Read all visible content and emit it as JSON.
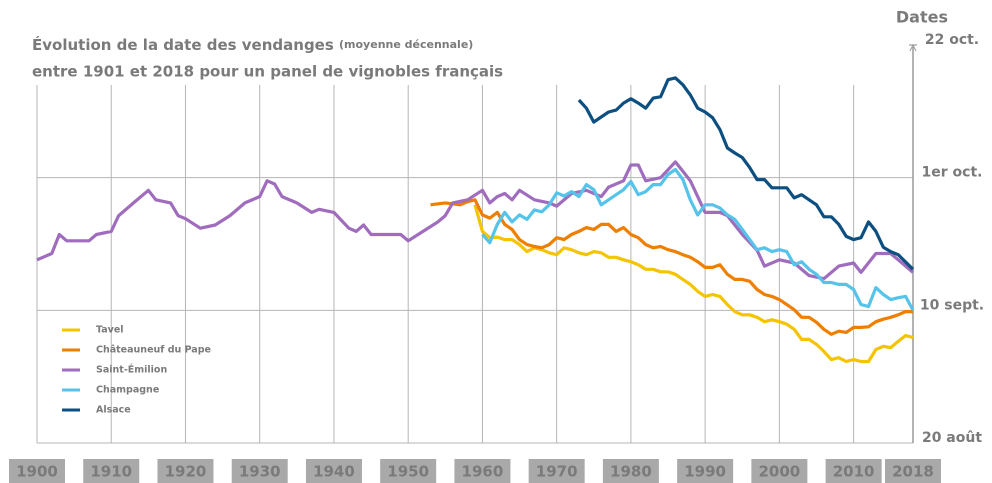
{
  "chart_data": {
    "type": "line",
    "title": "Évolution de la date des vendanges",
    "title_note": "(moyenne décennale)",
    "subtitle": "entre 1901 et 2018 pour un panel de vignobles français",
    "y_label": "Dates",
    "xlim": [
      1900,
      2018
    ],
    "xticks": [
      1900,
      1910,
      1920,
      1930,
      1940,
      1950,
      1960,
      1970,
      1980,
      1990,
      2000,
      2010,
      2018
    ],
    "ylim": [
      232,
      295
    ],
    "yticks": [
      {
        "value": 232,
        "label": "20 août"
      },
      {
        "value": 253,
        "label": "10 sept."
      },
      {
        "value": 274,
        "label": "1er oct."
      },
      {
        "value": 295,
        "label": "22 oct."
      }
    ],
    "grid": true,
    "legend": "lower left",
    "series": [
      {
        "name": "Tavel",
        "color": "#f5c400",
        "x": [
          1959,
          1960,
          1961,
          1962,
          1963,
          1964,
          1965,
          1966,
          1967,
          1968,
          1969,
          1970,
          1971,
          1972,
          1973,
          1974,
          1975,
          1976,
          1977,
          1978,
          1979,
          1980,
          1981,
          1982,
          1983,
          1984,
          1985,
          1986,
          1987,
          1988,
          1989,
          1990,
          1991,
          1992,
          1993,
          1994,
          1995,
          1996,
          1997,
          1998,
          1999,
          2000,
          2001,
          2002,
          2003,
          2004,
          2005,
          2006,
          2007,
          2008,
          2009,
          2010,
          2011,
          2012,
          2013,
          2014,
          2015,
          2016,
          2017,
          2018
        ],
        "values": [
          269.7,
          265.5,
          264.5,
          264.6,
          264.2,
          264.2,
          263.4,
          262.3,
          262.9,
          262.6,
          262.1,
          261.8,
          262.9,
          262.6,
          262.1,
          261.8,
          262.3,
          262.1,
          261.4,
          261.4,
          261,
          260.7,
          260.2,
          259.5,
          259.5,
          259.1,
          259.1,
          258.7,
          257.9,
          257.1,
          256,
          255.2,
          255.5,
          255.2,
          253.9,
          252.8,
          252.3,
          252.3,
          251.9,
          251.2,
          251.5,
          251.2,
          250.8,
          250,
          248.4,
          248.4,
          247.6,
          246.5,
          245.2,
          245.5,
          244.9,
          245.2,
          244.9,
          244.9,
          246.8,
          247.3,
          247.1,
          248.1,
          249,
          248.7
        ]
      },
      {
        "name": "Châteauneuf du Pape",
        "color": "#ee7f00",
        "x": [
          1953,
          1955,
          1957,
          1958,
          1959,
          1960,
          1961,
          1962,
          1963,
          1964,
          1965,
          1966,
          1967,
          1968,
          1969,
          1970,
          1971,
          1972,
          1973,
          1974,
          1975,
          1976,
          1977,
          1978,
          1979,
          1980,
          1981,
          1982,
          1983,
          1984,
          1985,
          1986,
          1987,
          1988,
          1989,
          1990,
          1991,
          1992,
          1993,
          1994,
          1995,
          1996,
          1997,
          1998,
          1999,
          2000,
          2001,
          2002,
          2003,
          2004,
          2005,
          2006,
          2007,
          2008,
          2009,
          2010,
          2011,
          2012,
          2013,
          2014,
          2015,
          2016,
          2017,
          2018
        ],
        "values": [
          269.7,
          270,
          269.7,
          270.2,
          270.5,
          268.1,
          267.6,
          268.5,
          266.6,
          265.8,
          264.2,
          263.4,
          263.1,
          262.9,
          263.4,
          264.5,
          264.2,
          265,
          265.5,
          266.1,
          265.8,
          266.6,
          266.6,
          265.5,
          266.1,
          265,
          264.5,
          263.4,
          262.9,
          263.1,
          262.6,
          262.3,
          261.8,
          261.4,
          260.7,
          259.8,
          259.8,
          260.2,
          258.7,
          257.9,
          257.9,
          257.6,
          256.3,
          255.5,
          255.2,
          254.7,
          253.9,
          253.1,
          251.9,
          251.9,
          251.1,
          250,
          249.2,
          249.7,
          249.5,
          250.3,
          250.3,
          250.4,
          251.2,
          251.6,
          251.9,
          252.3,
          252.8,
          252.8
        ]
      },
      {
        "name": "Saint-Émilion",
        "color": "#a06cbd",
        "x": [
          1900,
          1902,
          1903,
          1904,
          1907,
          1908,
          1910,
          1911,
          1913,
          1915,
          1916,
          1918,
          1919,
          1920,
          1922,
          1924,
          1926,
          1928,
          1930,
          1931,
          1932,
          1933,
          1935,
          1937,
          1938,
          1940,
          1942,
          1943,
          1944,
          1945,
          1947,
          1949,
          1950,
          1952,
          1954,
          1955,
          1956,
          1958,
          1960,
          1961,
          1962,
          1963,
          1964,
          1965,
          1967,
          1969,
          1970,
          1972,
          1974,
          1976,
          1977,
          1979,
          1980,
          1981,
          1982,
          1984,
          1986,
          1987,
          1988,
          1989,
          1990,
          1992,
          1993,
          1995,
          1997,
          1998,
          2000,
          2002,
          2004,
          2006,
          2008,
          2010,
          2011,
          2013,
          2015,
          2016,
          2018
        ],
        "values": [
          261,
          262,
          265,
          264,
          264,
          265,
          265.5,
          268,
          270,
          272,
          270.5,
          270,
          268,
          267.5,
          266,
          266.5,
          268,
          270,
          271,
          273.5,
          273,
          271,
          270,
          268.5,
          269,
          268.5,
          266,
          265.5,
          266.5,
          265,
          265,
          265,
          264,
          265.5,
          267,
          268,
          270,
          270.5,
          272,
          270,
          271,
          271.5,
          270.5,
          272,
          270.5,
          270,
          269.5,
          271.5,
          272,
          271,
          272.5,
          273.5,
          276,
          276,
          273.5,
          274,
          276.5,
          275,
          273.5,
          271,
          268.5,
          268.5,
          268,
          265,
          262.5,
          260,
          261,
          260.5,
          258.5,
          258,
          260,
          260.5,
          259,
          262,
          262,
          261,
          259
        ]
      },
      {
        "name": "Champagne",
        "color": "#56c3ea",
        "x": [
          1960,
          1961,
          1962,
          1963,
          1964,
          1965,
          1966,
          1967,
          1968,
          1969,
          1970,
          1971,
          1972,
          1973,
          1974,
          1975,
          1976,
          1977,
          1978,
          1979,
          1980,
          1981,
          1982,
          1983,
          1984,
          1985,
          1986,
          1987,
          1988,
          1989,
          1990,
          1991,
          1992,
          1993,
          1994,
          1995,
          1996,
          1997,
          1998,
          1999,
          2000,
          2001,
          2002,
          2003,
          2004,
          2005,
          2006,
          2007,
          2008,
          2009,
          2010,
          2011,
          2012,
          2013,
          2014,
          2015,
          2016,
          2017,
          2018
        ],
        "values": [
          265,
          263.7,
          266.6,
          268.5,
          267,
          268.1,
          267.4,
          268.9,
          268.6,
          269.7,
          271.6,
          271.1,
          271.8,
          271,
          272.9,
          272.1,
          269.7,
          270.5,
          271.3,
          272.1,
          273.4,
          271.3,
          271.8,
          272.9,
          272.9,
          274.5,
          275.3,
          273.7,
          270.5,
          268.1,
          269.7,
          269.7,
          269.2,
          268.1,
          267.4,
          265.8,
          264.2,
          262.6,
          262.9,
          262.3,
          262.6,
          262.3,
          260.2,
          260.7,
          259.5,
          258.7,
          257.4,
          257.4,
          257.1,
          257.1,
          256.3,
          253.9,
          253.6,
          256.6,
          255.5,
          254.7,
          255,
          255.2,
          253
        ]
      },
      {
        "name": "Alsace",
        "color": "#0c4f80",
        "x": [
          1973,
          1974,
          1975,
          1976,
          1977,
          1978,
          1979,
          1980,
          1981,
          1982,
          1983,
          1984,
          1985,
          1986,
          1987,
          1988,
          1989,
          1990,
          1991,
          1992,
          1993,
          1994,
          1995,
          1996,
          1997,
          1998,
          1999,
          2001,
          2002,
          2003,
          2004,
          2005,
          2006,
          2007,
          2008,
          2009,
          2010,
          2011,
          2012,
          2013,
          2014,
          2015,
          2016,
          2018
        ],
        "values": [
          286.3,
          285,
          282.8,
          283.6,
          284.4,
          284.7,
          285.8,
          286.5,
          285.8,
          285,
          286.6,
          286.8,
          289.5,
          289.8,
          288.7,
          287.1,
          285,
          284.4,
          283.5,
          281.6,
          278.7,
          277.9,
          277.2,
          275.6,
          273.7,
          273.7,
          272.4,
          272.4,
          270.8,
          271.3,
          270.5,
          269.7,
          267.8,
          267.8,
          266.6,
          264.7,
          264.2,
          264.5,
          267,
          265.5,
          263,
          262.3,
          261.8,
          259.5
        ]
      }
    ]
  }
}
